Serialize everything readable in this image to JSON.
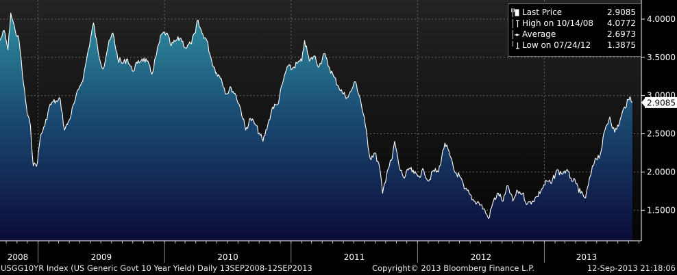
{
  "chart_data": {
    "type": "area",
    "x_unit": "date",
    "ylim": [
      1.1,
      4.25
    ],
    "y_ticks": [
      1.5,
      2.0,
      2.5,
      3.0,
      3.5,
      4.0
    ],
    "y_tick_labels": [
      "1.5000",
      "2.0000",
      "2.5000",
      "3.0000",
      "3.5000",
      "4.0000"
    ],
    "x_tick_labels": [
      "2008",
      "2009",
      "2010",
      "2011",
      "2012",
      "2013"
    ],
    "grid": true,
    "legend_position": "top-right",
    "series": [
      {
        "name": "Last Price",
        "points": [
          [
            "2008-09-13",
            3.72
          ],
          [
            "2008-09-25",
            3.85
          ],
          [
            "2008-10-06",
            3.6
          ],
          [
            "2008-10-14",
            4.08
          ],
          [
            "2008-10-27",
            3.85
          ],
          [
            "2008-11-07",
            3.72
          ],
          [
            "2008-11-20",
            3.15
          ],
          [
            "2008-12-01",
            2.75
          ],
          [
            "2008-12-10",
            2.6
          ],
          [
            "2008-12-18",
            2.08
          ],
          [
            "2008-12-30",
            2.12
          ],
          [
            "2009-01-08",
            2.48
          ],
          [
            "2009-01-20",
            2.6
          ],
          [
            "2009-02-02",
            2.85
          ],
          [
            "2009-02-13",
            2.92
          ],
          [
            "2009-02-25",
            2.92
          ],
          [
            "2009-03-06",
            2.95
          ],
          [
            "2009-03-18",
            2.55
          ],
          [
            "2009-04-01",
            2.68
          ],
          [
            "2009-04-15",
            2.9
          ],
          [
            "2009-04-28",
            3.08
          ],
          [
            "2009-05-12",
            3.25
          ],
          [
            "2009-05-26",
            3.6
          ],
          [
            "2009-06-10",
            3.95
          ],
          [
            "2009-06-24",
            3.55
          ],
          [
            "2009-07-08",
            3.35
          ],
          [
            "2009-07-22",
            3.65
          ],
          [
            "2009-08-05",
            3.82
          ],
          [
            "2009-08-19",
            3.48
          ],
          [
            "2009-09-02",
            3.42
          ],
          [
            "2009-09-16",
            3.48
          ],
          [
            "2009-09-30",
            3.32
          ],
          [
            "2009-10-14",
            3.42
          ],
          [
            "2009-10-28",
            3.48
          ],
          [
            "2009-11-11",
            3.45
          ],
          [
            "2009-11-25",
            3.28
          ],
          [
            "2009-12-09",
            3.55
          ],
          [
            "2009-12-23",
            3.8
          ],
          [
            "2010-01-06",
            3.82
          ],
          [
            "2010-01-20",
            3.65
          ],
          [
            "2010-02-03",
            3.72
          ],
          [
            "2010-02-17",
            3.75
          ],
          [
            "2010-03-03",
            3.62
          ],
          [
            "2010-03-17",
            3.68
          ],
          [
            "2010-03-31",
            3.82
          ],
          [
            "2010-04-05",
            3.98
          ],
          [
            "2010-04-19",
            3.82
          ],
          [
            "2010-05-03",
            3.72
          ],
          [
            "2010-05-17",
            3.45
          ],
          [
            "2010-05-31",
            3.3
          ],
          [
            "2010-06-14",
            3.22
          ],
          [
            "2010-06-28",
            3.02
          ],
          [
            "2010-07-12",
            3.1
          ],
          [
            "2010-07-26",
            3.0
          ],
          [
            "2010-08-09",
            2.82
          ],
          [
            "2010-08-23",
            2.55
          ],
          [
            "2010-09-06",
            2.7
          ],
          [
            "2010-09-20",
            2.62
          ],
          [
            "2010-10-04",
            2.48
          ],
          [
            "2010-10-12",
            2.4
          ],
          [
            "2010-10-26",
            2.62
          ],
          [
            "2010-11-09",
            2.85
          ],
          [
            "2010-11-23",
            2.88
          ],
          [
            "2010-12-07",
            3.15
          ],
          [
            "2010-12-21",
            3.38
          ],
          [
            "2011-01-04",
            3.35
          ],
          [
            "2011-01-18",
            3.42
          ],
          [
            "2011-02-01",
            3.45
          ],
          [
            "2011-02-09",
            3.72
          ],
          [
            "2011-02-23",
            3.45
          ],
          [
            "2011-03-09",
            3.52
          ],
          [
            "2011-03-23",
            3.38
          ],
          [
            "2011-04-06",
            3.55
          ],
          [
            "2011-04-20",
            3.38
          ],
          [
            "2011-05-04",
            3.25
          ],
          [
            "2011-05-18",
            3.12
          ],
          [
            "2011-06-01",
            3.02
          ],
          [
            "2011-06-15",
            2.98
          ],
          [
            "2011-06-29",
            3.12
          ],
          [
            "2011-07-06",
            3.18
          ],
          [
            "2011-07-20",
            2.95
          ],
          [
            "2011-08-03",
            2.62
          ],
          [
            "2011-08-17",
            2.18
          ],
          [
            "2011-08-31",
            2.25
          ],
          [
            "2011-09-14",
            2.05
          ],
          [
            "2011-09-22",
            1.72
          ],
          [
            "2011-10-06",
            2.02
          ],
          [
            "2011-10-20",
            2.18
          ],
          [
            "2011-10-27",
            2.4
          ],
          [
            "2011-11-10",
            2.05
          ],
          [
            "2011-11-24",
            1.92
          ],
          [
            "2011-12-08",
            2.05
          ],
          [
            "2011-12-22",
            1.98
          ],
          [
            "2012-01-05",
            1.95
          ],
          [
            "2012-01-19",
            2.02
          ],
          [
            "2012-02-02",
            1.88
          ],
          [
            "2012-02-16",
            2.02
          ],
          [
            "2012-03-01",
            2.0
          ],
          [
            "2012-03-20",
            2.38
          ],
          [
            "2012-04-03",
            2.22
          ],
          [
            "2012-04-17",
            2.0
          ],
          [
            "2012-05-01",
            1.95
          ],
          [
            "2012-05-15",
            1.78
          ],
          [
            "2012-05-29",
            1.72
          ],
          [
            "2012-06-12",
            1.62
          ],
          [
            "2012-06-26",
            1.6
          ],
          [
            "2012-07-10",
            1.52
          ],
          [
            "2012-07-24",
            1.39
          ],
          [
            "2012-08-07",
            1.62
          ],
          [
            "2012-08-21",
            1.72
          ],
          [
            "2012-09-04",
            1.62
          ],
          [
            "2012-09-18",
            1.82
          ],
          [
            "2012-10-02",
            1.62
          ],
          [
            "2012-10-16",
            1.75
          ],
          [
            "2012-10-30",
            1.72
          ],
          [
            "2012-11-13",
            1.58
          ],
          [
            "2012-11-27",
            1.62
          ],
          [
            "2012-12-11",
            1.68
          ],
          [
            "2012-12-25",
            1.78
          ],
          [
            "2013-01-08",
            1.88
          ],
          [
            "2013-01-22",
            1.85
          ],
          [
            "2013-02-05",
            2.02
          ],
          [
            "2013-02-19",
            1.98
          ],
          [
            "2013-03-05",
            2.02
          ],
          [
            "2013-03-19",
            1.92
          ],
          [
            "2013-04-02",
            1.85
          ],
          [
            "2013-04-16",
            1.72
          ],
          [
            "2013-04-30",
            1.66
          ],
          [
            "2013-05-14",
            1.95
          ],
          [
            "2013-05-28",
            2.18
          ],
          [
            "2013-06-11",
            2.22
          ],
          [
            "2013-06-25",
            2.55
          ],
          [
            "2013-07-09",
            2.72
          ],
          [
            "2013-07-23",
            2.52
          ],
          [
            "2013-08-06",
            2.65
          ],
          [
            "2013-08-20",
            2.85
          ],
          [
            "2013-09-03",
            2.95
          ],
          [
            "2013-09-06",
            2.98
          ],
          [
            "2013-09-12",
            2.9085
          ]
        ]
      },
      {
        "name": "Average",
        "value": 2.6973
      }
    ],
    "current_label": "2.9085",
    "legend": [
      {
        "icon": "last-price-square-icon",
        "label": "Last Price",
        "value": "2.9085"
      },
      {
        "icon": "high-marker-icon",
        "label": "High on 10/14/08",
        "value": "4.0772"
      },
      {
        "icon": "average-marker-icon",
        "label": "Average",
        "value": "2.6973"
      },
      {
        "icon": "low-marker-icon",
        "label": "Low on 07/24/12",
        "value": "1.3875"
      }
    ],
    "legend_toggle_icon": "collapse-box-icon"
  },
  "colors": {
    "background": "#000000",
    "plot_top": "#232323",
    "plot_bottom": "#050505",
    "fill_top": "#2f8fa0",
    "fill_mid": "#1a4a72",
    "fill_bottom": "#0b0b38",
    "line": "#ffffff",
    "grid": "#6a6a6a",
    "axis_text": "#ffffff"
  },
  "footer": {
    "ticker": "USGG10YR Index (US Generic Govt 10 Year Yield)  Daily 13SEP2008-12SEP2013",
    "copyright": "Copyright© 2013 Bloomberg Finance L.P.",
    "timestamp": "12-Sep-2013 21:18:06"
  }
}
